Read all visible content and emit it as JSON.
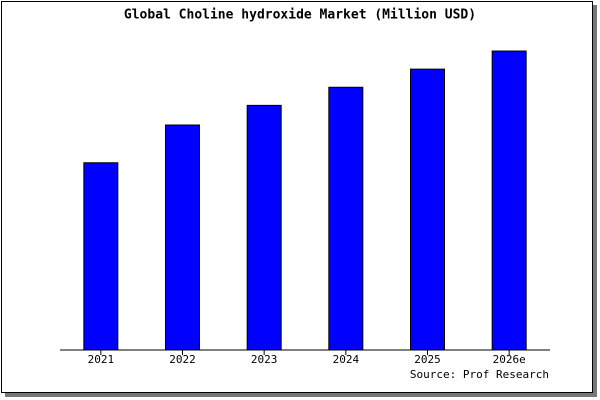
{
  "chart_data": {
    "type": "bar",
    "title": "Global Choline hydroxide Market (Million USD)",
    "categories": [
      "2021",
      "2022",
      "2023",
      "2024",
      "2025",
      "2026e"
    ],
    "values": [
      62,
      74.5,
      81,
      87,
      93,
      99
    ],
    "color": "#0000ff",
    "ylim": [
      0,
      100
    ],
    "source": "Source: Prof Research"
  }
}
